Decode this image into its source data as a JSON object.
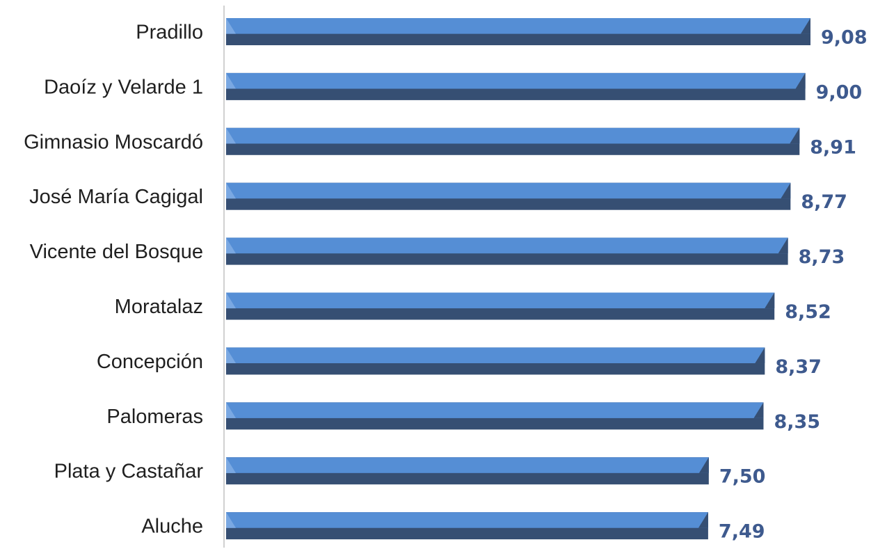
{
  "chart_data": {
    "type": "bar",
    "orientation": "horizontal",
    "title": "",
    "xlabel": "",
    "ylabel": "",
    "categories": [
      "Pradillo",
      "Daoíz y Velarde 1",
      "Gimnasio Moscardó",
      "José María Cagigal",
      "Vicente del Bosque",
      "Moratalaz",
      "Concepción",
      "Palomeras",
      "Plata y Castañar",
      "Aluche"
    ],
    "values": [
      9.08,
      9.0,
      8.91,
      8.77,
      8.73,
      8.52,
      8.37,
      8.35,
      7.5,
      7.49
    ],
    "value_labels": [
      "9,08",
      "9,00",
      "8,91",
      "8,77",
      "8,73",
      "8,52",
      "8,37",
      "8,35",
      "7,50",
      "7,49"
    ],
    "xlim": [
      0,
      9.08
    ],
    "grid": false,
    "legend": "none",
    "colors": {
      "bar_top": "#558ed5",
      "bar_bottom": "#364f73",
      "bar_highlight": "#7aa8e2",
      "value_label": "#3e5a8e",
      "category_label": "#1f1f1f",
      "axis": "#d0d0d0"
    }
  }
}
